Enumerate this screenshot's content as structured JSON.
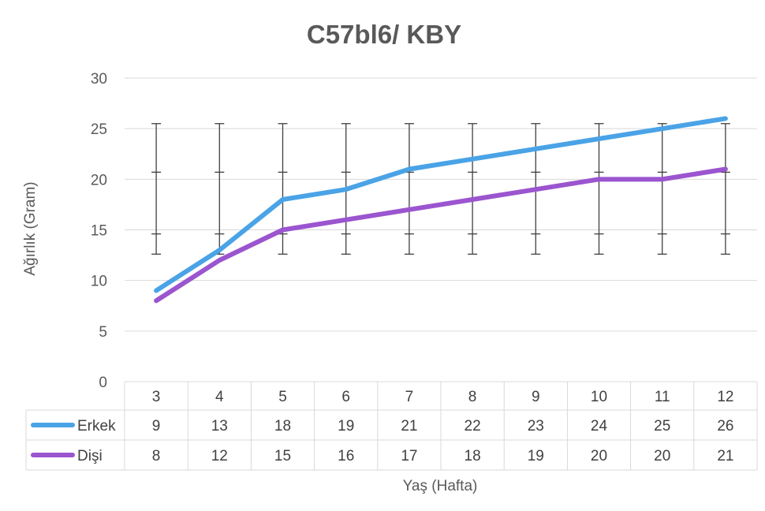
{
  "chart_data": {
    "type": "line",
    "title": "C57bl6/ KBY",
    "xlabel": "Yaş (Hafta)",
    "ylabel": "Ağırlık (Gram)",
    "categories": [
      "3",
      "4",
      "5",
      "6",
      "7",
      "8",
      "9",
      "10",
      "11",
      "12"
    ],
    "ylim": [
      0,
      30
    ],
    "yticks": [
      0,
      5,
      10,
      15,
      20,
      25,
      30
    ],
    "grid": true,
    "legend": "data-table",
    "series": [
      {
        "name": "Erkek",
        "color": "#4aa3e6",
        "values": [
          9,
          13,
          18,
          19,
          21,
          22,
          23,
          24,
          25,
          26
        ]
      },
      {
        "name": "Dişi",
        "color": "#9b55cf",
        "values": [
          8,
          12,
          15,
          16,
          17,
          18,
          19,
          20,
          20,
          21
        ]
      }
    ],
    "error_bars": {
      "lower": [
        12.6,
        14.6
      ],
      "upper": [
        20.7,
        25.5
      ],
      "color": "#404040"
    }
  }
}
